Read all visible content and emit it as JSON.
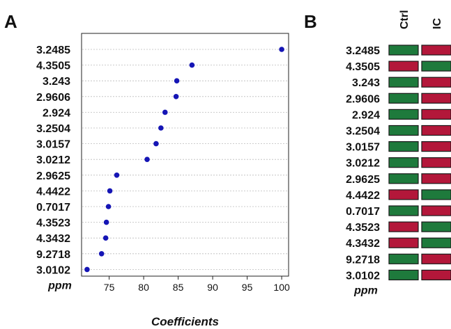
{
  "panels": {
    "a_label": "A",
    "b_label": "B"
  },
  "colors": {
    "point": "#1515b5",
    "high": "#1e7a3c",
    "low": "#b3173a",
    "grid": "#bbbbbb"
  },
  "chart_data": [
    {
      "type": "scatter",
      "xlabel": "Coefficients",
      "ylabel": "ppm",
      "xlim": [
        71,
        101
      ],
      "xticks": [
        75,
        80,
        85,
        90,
        95,
        100
      ],
      "grid": "horizontal-dotted",
      "categories": [
        "3.2485",
        "4.3505",
        "3.243",
        "2.9606",
        "2.924",
        "3.2504",
        "3.0157",
        "3.0212",
        "2.9625",
        "4.4422",
        "0.7017",
        "4.3523",
        "4.3432",
        "9.2718",
        "3.0102"
      ],
      "values": [
        100.0,
        87.0,
        84.8,
        84.7,
        83.1,
        82.5,
        81.8,
        80.5,
        76.1,
        75.1,
        74.9,
        74.6,
        74.5,
        73.9,
        71.8
      ]
    },
    {
      "type": "heatmap",
      "ylabel": "ppm",
      "columns": [
        "Ctrl",
        "IC"
      ],
      "categories": [
        "3.2485",
        "4.3505",
        "3.243",
        "2.9606",
        "2.924",
        "3.2504",
        "3.0157",
        "3.0212",
        "2.9625",
        "4.4422",
        "0.7017",
        "4.3523",
        "4.3432",
        "9.2718",
        "3.0102"
      ],
      "cells": [
        [
          "high",
          "low"
        ],
        [
          "low",
          "high"
        ],
        [
          "high",
          "low"
        ],
        [
          "high",
          "low"
        ],
        [
          "high",
          "low"
        ],
        [
          "high",
          "low"
        ],
        [
          "high",
          "low"
        ],
        [
          "high",
          "low"
        ],
        [
          "high",
          "low"
        ],
        [
          "low",
          "high"
        ],
        [
          "high",
          "low"
        ],
        [
          "low",
          "high"
        ],
        [
          "low",
          "high"
        ],
        [
          "high",
          "low"
        ],
        [
          "high",
          "low"
        ]
      ]
    }
  ]
}
